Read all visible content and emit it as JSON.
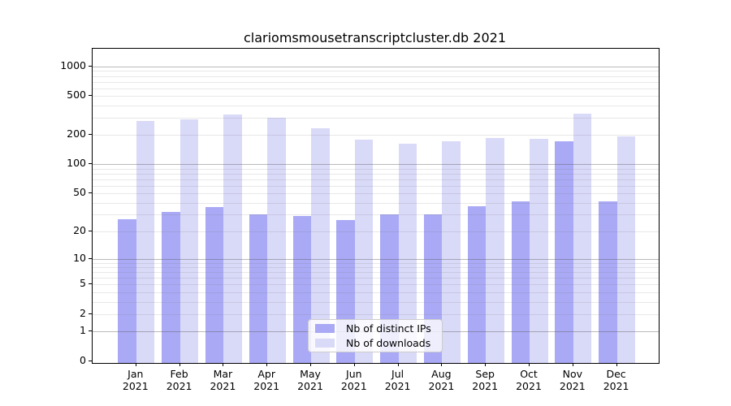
{
  "title": "clariomsmousetranscriptcluster.db 2021",
  "chart_data": {
    "type": "bar",
    "title": "clariomsmousetranscriptcluster.db 2021",
    "categories": [
      "Jan 2021",
      "Feb 2021",
      "Mar 2021",
      "Apr 2021",
      "May 2021",
      "Jun 2021",
      "Jul 2021",
      "Aug 2021",
      "Sep 2021",
      "Oct 2021",
      "Nov 2021",
      "Dec 2021"
    ],
    "x_tick_months": [
      "Jan",
      "Feb",
      "Mar",
      "Apr",
      "May",
      "Jun",
      "Jul",
      "Aug",
      "Sep",
      "Oct",
      "Nov",
      "Dec"
    ],
    "x_tick_year": "2021",
    "series": [
      {
        "name": "Nb of distinct IPs",
        "color": "#a9a9f5",
        "values": [
          27,
          32,
          36,
          30,
          29,
          26,
          30,
          30,
          37,
          41,
          172,
          41
        ]
      },
      {
        "name": "Nb of downloads",
        "color": "#d9d9f8",
        "values": [
          278,
          286,
          322,
          298,
          234,
          179,
          163,
          172,
          186,
          182,
          327,
          192
        ]
      }
    ],
    "xlabel": "",
    "ylabel": "",
    "yscale": "log1p",
    "ylim": [
      0,
      1500
    ],
    "y_ticks": [
      0,
      1,
      2,
      5,
      10,
      20,
      50,
      100,
      200,
      500,
      1000
    ],
    "y_major_grid": [
      1,
      10,
      100,
      1000
    ],
    "y_minor_grid": [
      2,
      3,
      4,
      5,
      6,
      7,
      8,
      9,
      20,
      30,
      40,
      50,
      60,
      70,
      80,
      90,
      200,
      300,
      400,
      500,
      600,
      700,
      800,
      900
    ],
    "grid": true,
    "legend_position": "lower-center",
    "colors": {
      "axis": "#000000",
      "major_grid": "#b9b9b9",
      "minor_grid": "#e8e8e8",
      "background": "#ffffff"
    }
  }
}
